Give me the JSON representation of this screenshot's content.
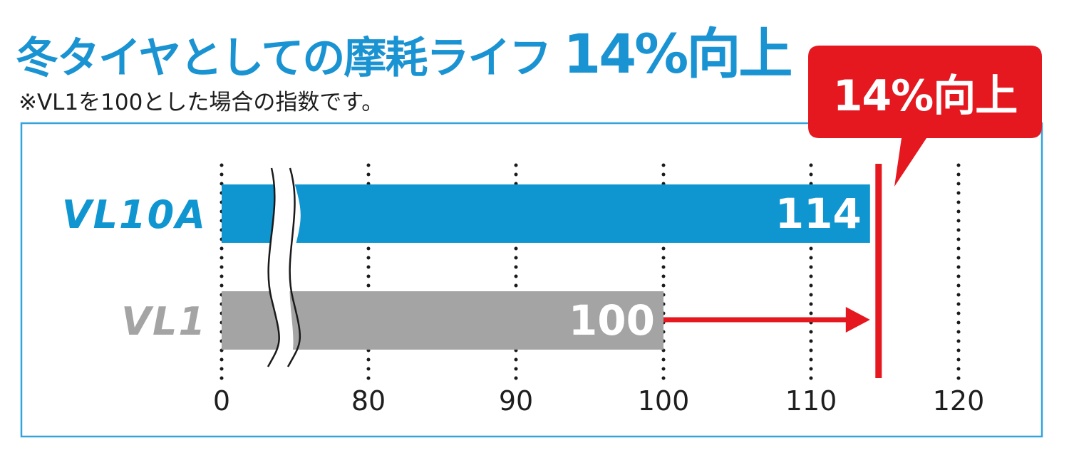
{
  "header": {
    "title_main": "冬タイヤとしての摩耗ライフ",
    "title_highlight": "14%向上",
    "note": "※VL1を100とした場合の指数です。"
  },
  "colors": {
    "blue": "#0f96d1",
    "gray": "#a4a4a4",
    "red": "#e5171f",
    "frame": "#33a3dc"
  },
  "chart_data": {
    "type": "bar",
    "orientation": "horizontal",
    "categories": [
      "VL10A",
      "VL1"
    ],
    "values": [
      114,
      100
    ],
    "data_labels": [
      "114",
      "100"
    ],
    "bar_colors": [
      "#0f96d1",
      "#a4a4a4"
    ],
    "xticks": [
      "0",
      "80",
      "90",
      "100",
      "110",
      "120"
    ],
    "axis_break": "0–80",
    "grid": "dotted vertical",
    "callout": "14%向上",
    "improvement_arrow": {
      "from": 100,
      "to": 114
    }
  }
}
